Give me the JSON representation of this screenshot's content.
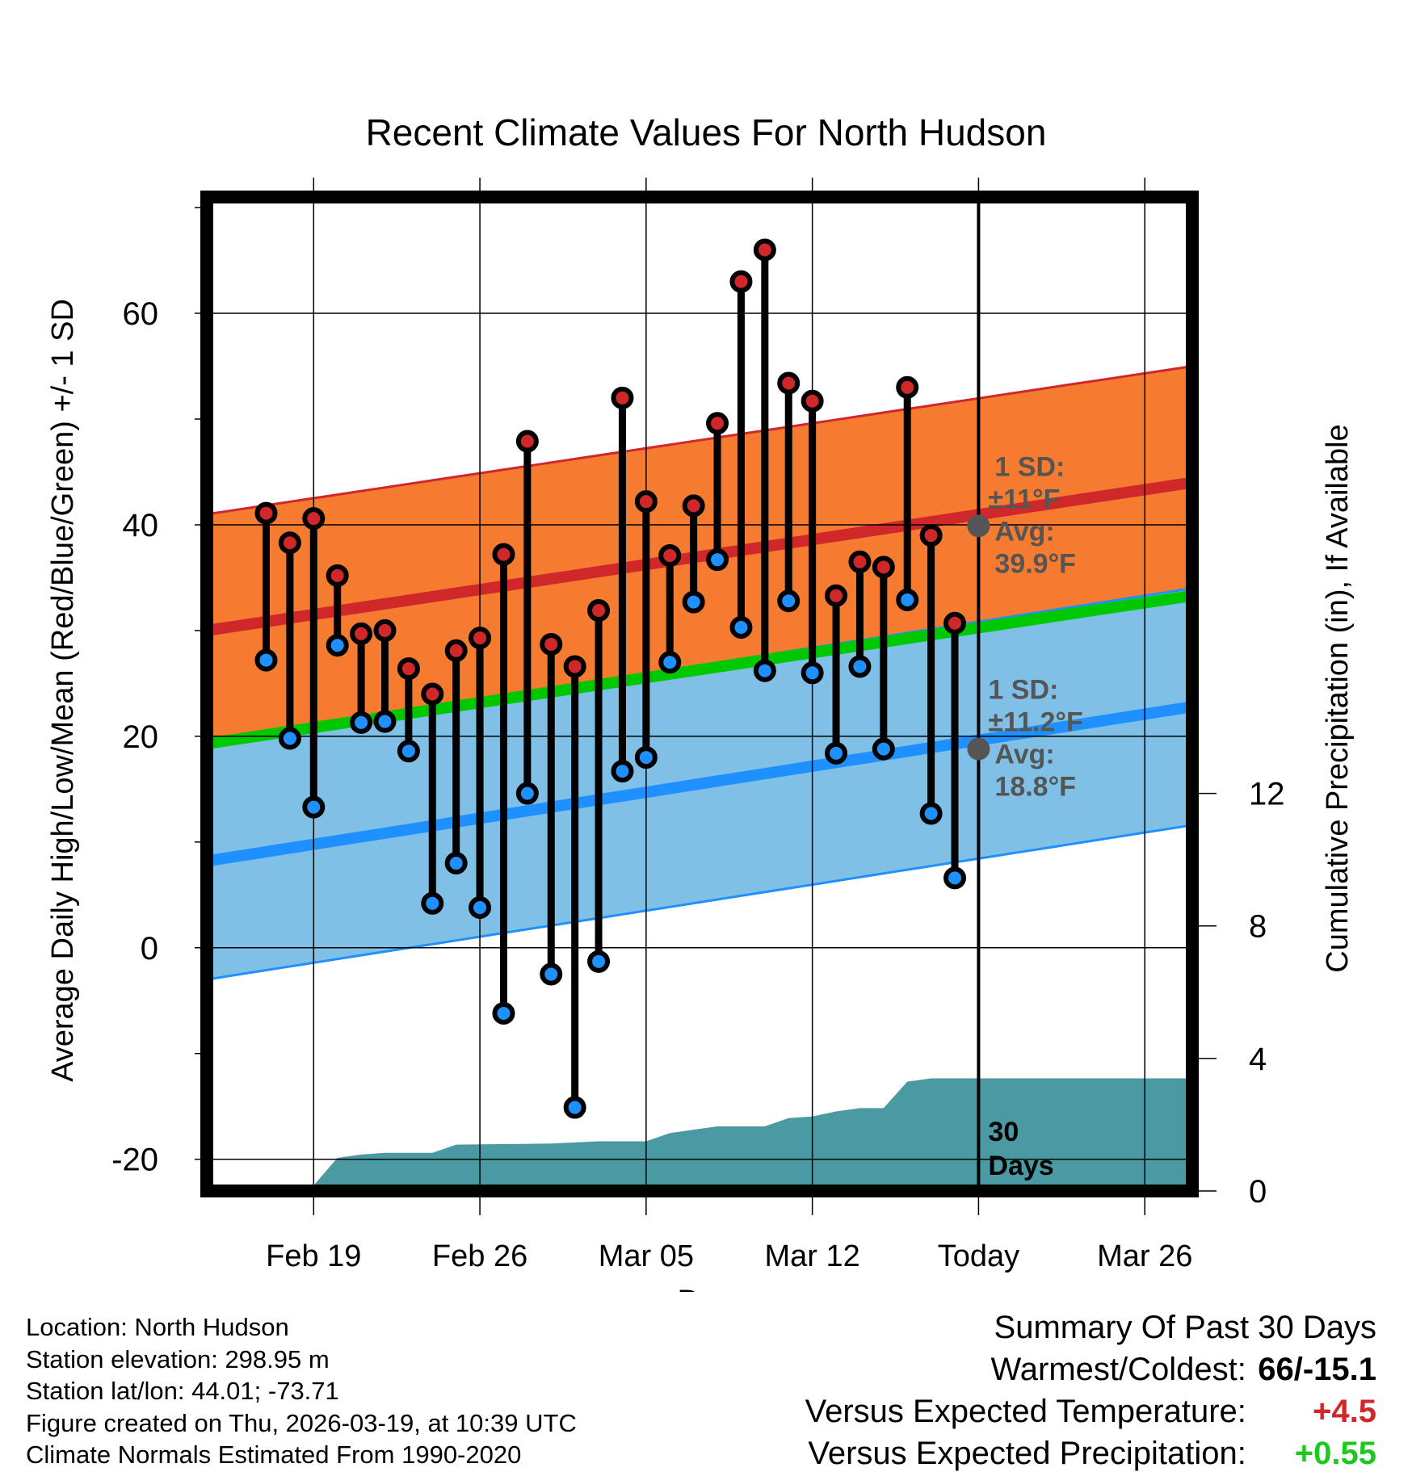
{
  "colors": {
    "high_band": "#f47b30",
    "high_line": "#d0282a",
    "low_band": "#80c0e6",
    "low_line": "#1e90ff",
    "mean_line": "#00c800",
    "precip_fill": "#4a9aa4",
    "overlap": "#8b1a1a",
    "annotation": "#555555",
    "positive_red": "#d0282a",
    "positive_green": "#1ec81e"
  },
  "chart_data": {
    "type": "line",
    "title": "Recent Climate Values For North Hudson",
    "xlabel": "Day",
    "ylabel": "Average Daily High/Low/Mean (Red/Blue/Green) +/- 1 SD",
    "y2label": "Cumulative Precipitation (in), If Available",
    "ylim": [
      -23,
      71
    ],
    "y_ticks": [
      -20,
      0,
      20,
      40,
      60
    ],
    "y2lim": [
      0,
      30
    ],
    "y2_ticks": [
      0,
      4,
      8,
      12
    ],
    "x_range_days": [
      -32.5,
      9
    ],
    "x_ticks": [
      {
        "day": -28,
        "label": "Feb 19"
      },
      {
        "day": -21,
        "label": "Feb 26"
      },
      {
        "day": -14,
        "label": "Mar 05"
      },
      {
        "day": -7,
        "label": "Mar 12"
      },
      {
        "day": 0,
        "label": "Today"
      },
      {
        "day": 7,
        "label": "Mar 26"
      }
    ],
    "normal_high": {
      "start": 30.0,
      "end": 44.0
    },
    "normal_high_sd": 11,
    "normal_low": {
      "start": 8.2,
      "end": 22.8
    },
    "normal_low_sd": 11.2,
    "normal_mean": {
      "start": 19.3,
      "end": 33.3
    },
    "daily": [
      {
        "day": -30,
        "high": 41.1,
        "low": 27.2
      },
      {
        "day": -29,
        "high": 38.3,
        "low": 19.8
      },
      {
        "day": -28,
        "high": 40.6,
        "low": 13.3
      },
      {
        "day": -27,
        "high": 35.2,
        "low": 28.6
      },
      {
        "day": -26,
        "high": 29.7,
        "low": 21.3
      },
      {
        "day": -25,
        "high": 30.0,
        "low": 21.4
      },
      {
        "day": -24,
        "high": 26.4,
        "low": 18.6
      },
      {
        "day": -23,
        "high": 24.0,
        "low": 4.2
      },
      {
        "day": -22,
        "high": 28.1,
        "low": 8.0
      },
      {
        "day": -21,
        "high": 29.3,
        "low": 3.8
      },
      {
        "day": -20,
        "high": 37.2,
        "low": -6.2
      },
      {
        "day": -19,
        "high": 47.9,
        "low": 14.6
      },
      {
        "day": -18,
        "high": 28.7,
        "low": -2.5
      },
      {
        "day": -17,
        "high": 26.6,
        "low": -15.1
      },
      {
        "day": -16,
        "high": 31.9,
        "low": -1.3
      },
      {
        "day": -15,
        "high": 52.0,
        "low": 16.7
      },
      {
        "day": -14,
        "high": 42.2,
        "low": 18.0
      },
      {
        "day": -13,
        "high": 37.1,
        "low": 27.0
      },
      {
        "day": -12,
        "high": 41.8,
        "low": 32.7
      },
      {
        "day": -11,
        "high": 49.6,
        "low": 36.7
      },
      {
        "day": -10,
        "high": 63.0,
        "low": 30.3
      },
      {
        "day": -9,
        "high": 66.0,
        "low": 26.2
      },
      {
        "day": -8,
        "high": 53.4,
        "low": 32.8
      },
      {
        "day": -7,
        "high": 51.7,
        "low": 26.0
      },
      {
        "day": -6,
        "high": 33.3,
        "low": 18.4
      },
      {
        "day": -5,
        "high": 36.5,
        "low": 26.6
      },
      {
        "day": -4,
        "high": 36.0,
        "low": 18.8
      },
      {
        "day": -3,
        "high": 53.0,
        "low": 32.9
      },
      {
        "day": -2,
        "high": 39.0,
        "low": 12.7
      },
      {
        "day": -1,
        "high": 30.7,
        "low": 6.6
      }
    ],
    "precip_cumulative": [
      {
        "day": -28.2,
        "value": 0.0
      },
      {
        "day": -27.0,
        "value": 1.0
      },
      {
        "day": -26.0,
        "value": 1.1
      },
      {
        "day": -25.0,
        "value": 1.15
      },
      {
        "day": -23.0,
        "value": 1.15
      },
      {
        "day": -22.0,
        "value": 1.4
      },
      {
        "day": -18.0,
        "value": 1.43
      },
      {
        "day": -16.0,
        "value": 1.5
      },
      {
        "day": -14.0,
        "value": 1.5
      },
      {
        "day": -13.0,
        "value": 1.75
      },
      {
        "day": -12.0,
        "value": 1.85
      },
      {
        "day": -11.0,
        "value": 1.95
      },
      {
        "day": -9.0,
        "value": 1.95
      },
      {
        "day": -8.0,
        "value": 2.2
      },
      {
        "day": -7.0,
        "value": 2.25
      },
      {
        "day": -6.0,
        "value": 2.4
      },
      {
        "day": -5.0,
        "value": 2.5
      },
      {
        "day": -4.0,
        "value": 2.5
      },
      {
        "day": -3.0,
        "value": 3.3
      },
      {
        "day": -2.0,
        "value": 3.4
      },
      {
        "day": 9.0,
        "value": 3.4
      }
    ],
    "annotations": {
      "high_sd_label": "1 SD:",
      "high_sd_value": "±11°F",
      "high_avg_label": "Avg:",
      "high_avg_value": "39.9°F",
      "high_avg": 39.9,
      "low_sd_label": "1 SD:",
      "low_sd_value": "±11.2°F",
      "low_avg_label": "Avg:",
      "low_avg_value": "18.8°F",
      "low_avg": 18.8,
      "window_label_1": "30",
      "window_label_2": "Days"
    }
  },
  "info": {
    "location": "Location: North Hudson",
    "elevation": "Station elevation: 298.95 m",
    "latlon": "Station lat/lon: 44.01; -73.71",
    "created": "Figure created on Thu, 2026-03-19, at 10:39 UTC",
    "normals": "Climate Normals Estimated From 1990-2020"
  },
  "summary": {
    "title": "Summary Of Past 30 Days",
    "warm_cold_label": "Warmest/Coldest:",
    "warm_cold_value": "66/-15.1",
    "temp_label": "Versus Expected Temperature:",
    "temp_value": "+4.5",
    "precip_label": "Versus Expected Precipitation:",
    "precip_value": "+0.55"
  }
}
